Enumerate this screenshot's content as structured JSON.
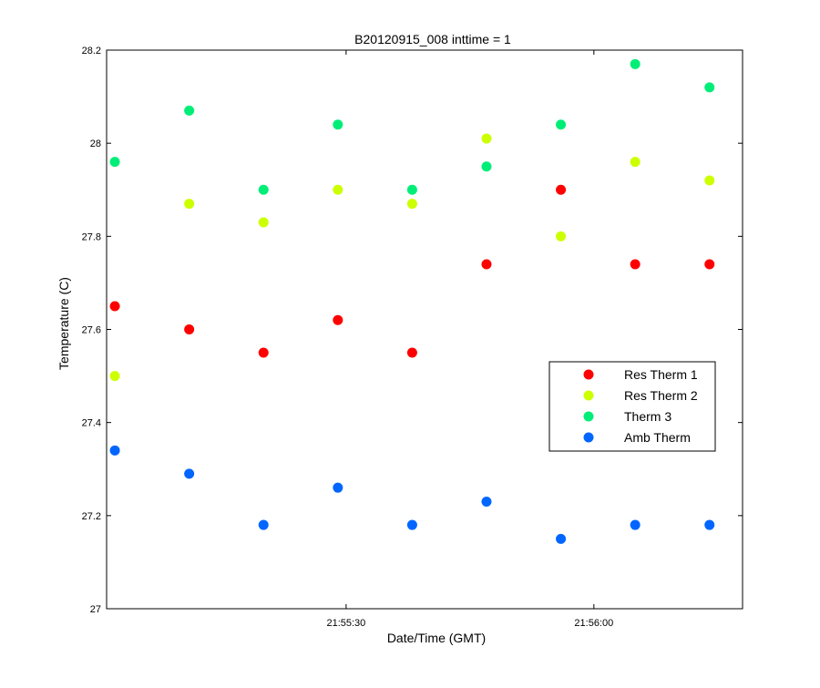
{
  "chart_data": {
    "type": "scatter",
    "title": "B20120915_008 inttime = 1",
    "xlabel": "Date/Time (GMT)",
    "ylabel": "Temperature (C)",
    "x_ticks": [
      {
        "label": "21:55:30",
        "value": "21:55:30"
      },
      {
        "label": "21:56:00",
        "value": "21:56:00"
      }
    ],
    "y_ticks": [
      "27",
      "27.2",
      "27.4",
      "27.6",
      "27.8",
      "28",
      "28.2"
    ],
    "xlim": [
      "21:55:01",
      "21:56:18"
    ],
    "ylim": [
      27,
      28.2
    ],
    "grid": false,
    "legend_position": "center-right",
    "x": [
      "21:55:02",
      "21:55:11",
      "21:55:20",
      "21:55:29",
      "21:55:38",
      "21:55:47",
      "21:55:56",
      "21:56:05",
      "21:56:14"
    ],
    "series": [
      {
        "name": "Res Therm 1",
        "color": "#ff0000",
        "values": [
          27.65,
          27.6,
          27.55,
          27.62,
          27.55,
          27.74,
          27.9,
          27.74,
          27.74
        ]
      },
      {
        "name": "Res Therm 2",
        "color": "#ccff00",
        "values": [
          27.5,
          27.87,
          27.83,
          27.9,
          27.87,
          28.01,
          27.8,
          27.96,
          27.92
        ]
      },
      {
        "name": "Therm 3",
        "color": "#00ee77",
        "values": [
          27.96,
          28.07,
          27.9,
          28.04,
          27.9,
          27.95,
          28.04,
          28.17,
          28.12
        ]
      },
      {
        "name": "Amb Therm",
        "color": "#0066ff",
        "values": [
          27.34,
          27.29,
          27.18,
          27.26,
          27.18,
          27.23,
          27.15,
          27.18,
          27.18
        ]
      }
    ]
  }
}
